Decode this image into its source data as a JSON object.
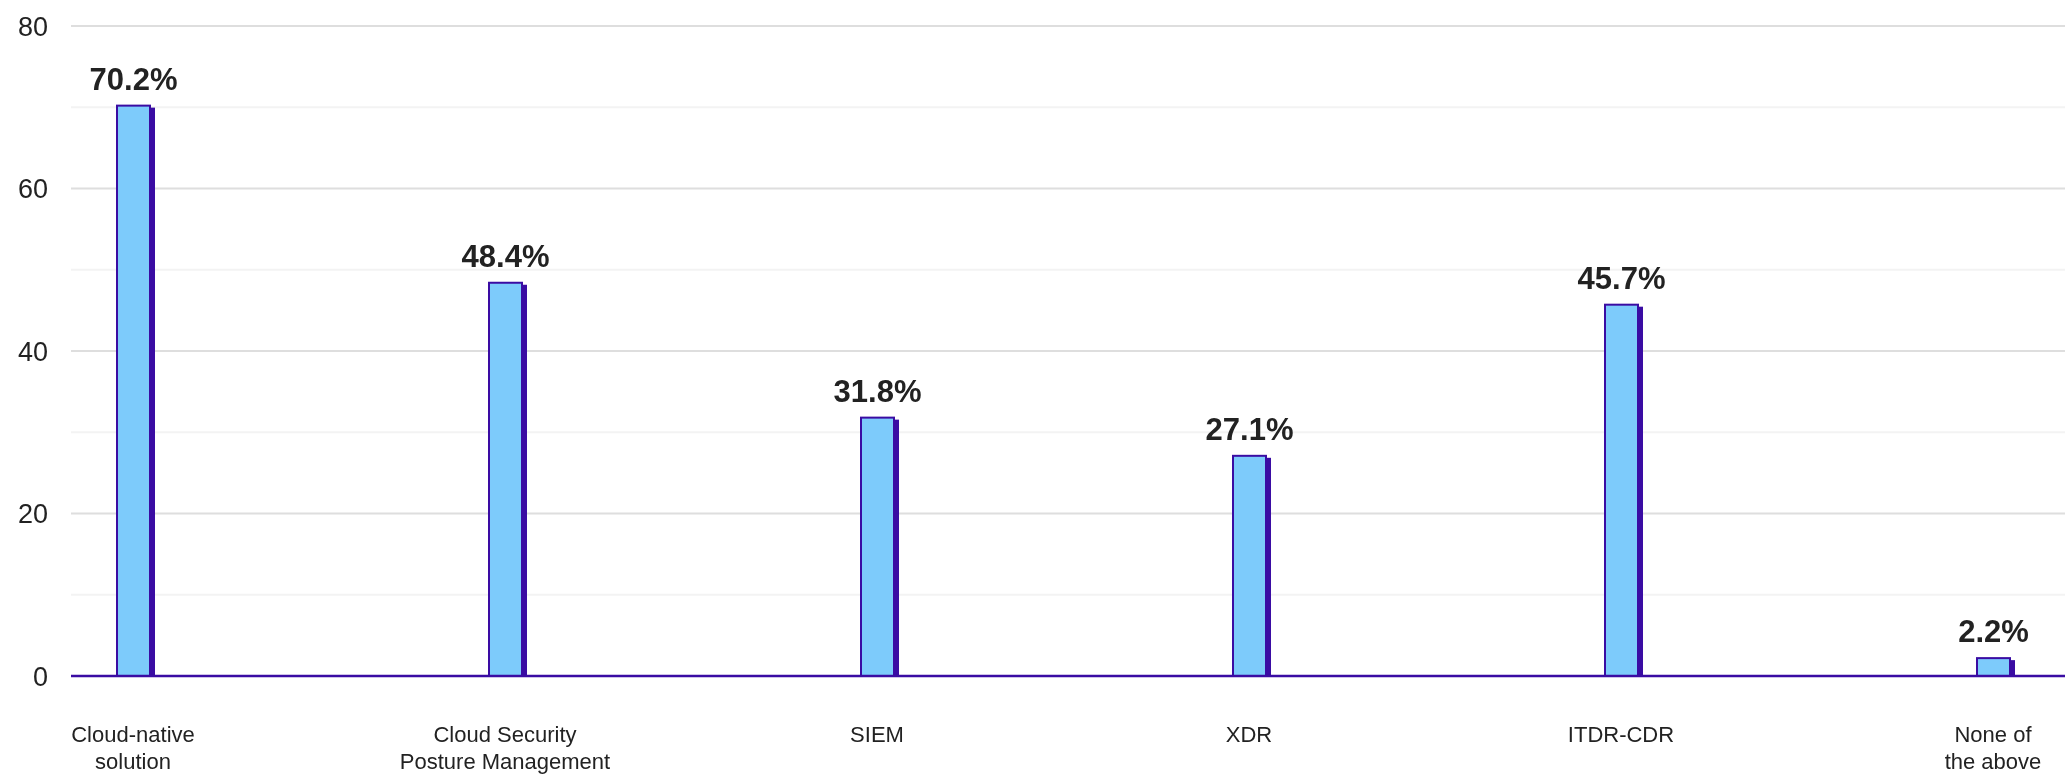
{
  "chart_data": {
    "type": "bar",
    "categories": [
      "Cloud-native solution",
      "Cloud Security Posture Management",
      "SIEM",
      "XDR",
      "ITDR-CDR",
      "None of the above"
    ],
    "values": [
      70.2,
      48.4,
      31.8,
      27.1,
      45.7,
      2.2
    ],
    "color": "#7dcbfb",
    "value_labels": [
      "70.2%",
      "48.4%",
      "31.8%",
      "27.1%",
      "45.7%",
      "2.2%"
    ],
    "ylim": [
      0,
      80
    ],
    "yticks": [
      0,
      {
        "value": 10,
        "label": null
      },
      20,
      {
        "value": 30,
        "label": null
      },
      40,
      {
        "value": 50,
        "label": null
      },
      60,
      {
        "value": 70,
        "label": null
      },
      80
    ],
    "grid": "y"
  }
}
